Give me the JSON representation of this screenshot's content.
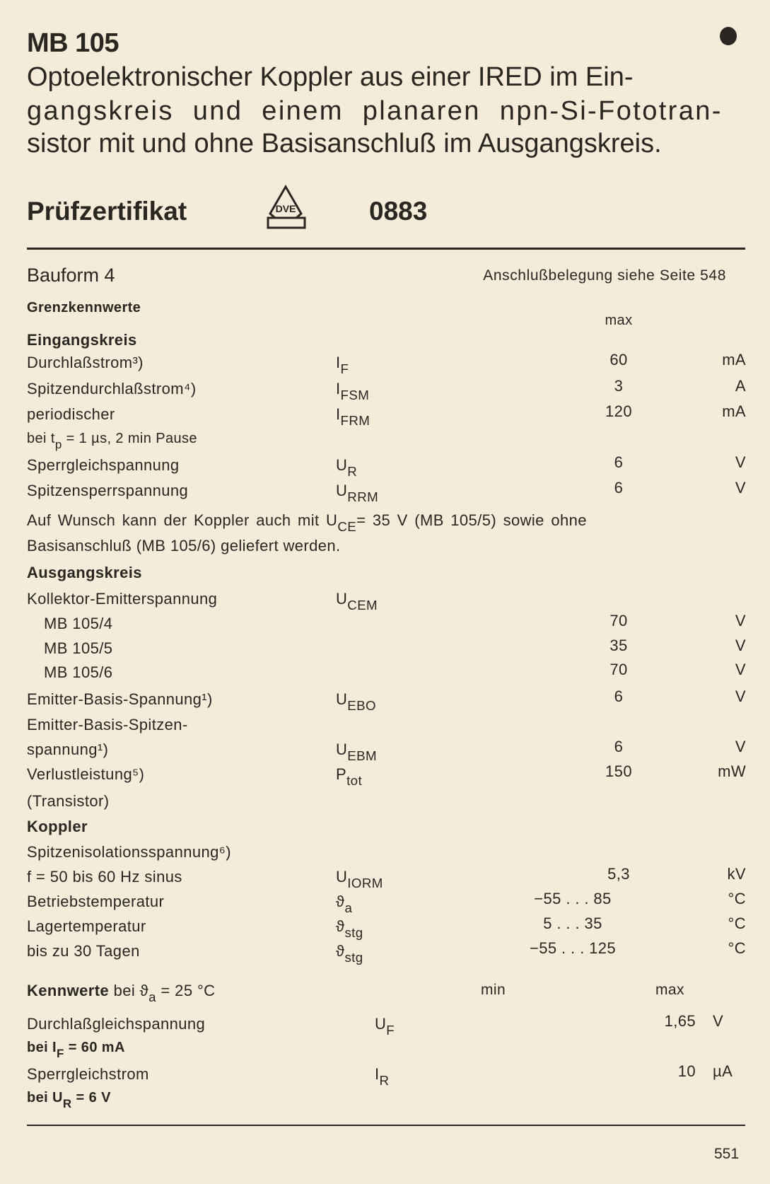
{
  "header": {
    "title": "MB 105",
    "description_lines": [
      "Optoelektronischer Koppler aus einer IRED im Ein-",
      "gangskreis und einem planaren npn-Si-Fototran-",
      "sistor mit und ohne Basisanschluß im Ausgangskreis."
    ],
    "certificate_label": "Prüfzertifikat",
    "certificate_logo_text": "DVE",
    "certificate_number": "0883"
  },
  "package": {
    "bauform": "Bauform 4",
    "pinout_note": "Anschlußbelegung siehe Seite 548"
  },
  "limits": {
    "heading": "Grenzkennwerte",
    "max_label": "max",
    "rows": [
      {
        "label": "Eingangskreis",
        "bold": true
      },
      {
        "label": "Durchlaßstrom³)",
        "symbol": "I_{F}",
        "value": "60",
        "unit": "mA"
      },
      {
        "label": "Spitzendurchlaßstrom⁴)",
        "symbol": "I_{FSM}",
        "value": "3",
        "unit": "A"
      },
      {
        "label": "periodischer",
        "symbol": "I_{FRM}",
        "value": "120",
        "unit": "mA"
      },
      {
        "label": "bei t_{p} = 1 µs, 2 min Pause",
        "small": true
      },
      {
        "label": "Sperrgleichspannung",
        "symbol": "U_{R}",
        "value": "6",
        "unit": "V"
      },
      {
        "label": "Spitzensperrspannung",
        "symbol": "U_{RRM}",
        "value": "6",
        "unit": "V"
      },
      {
        "label": "Auf Wunsch kann der Koppler auch mit U_{CE}= 35 V (MB 105/5) sowie ohne",
        "wide": true
      },
      {
        "label": "Basisanschluß (MB 105/6) geliefert werden."
      },
      {
        "label": "Ausgangskreis",
        "bold": true
      },
      {
        "label": "Kollektor-Emitterspannung",
        "symbol": "U_{CEM}"
      },
      {
        "label": "MB 105/4",
        "indent": true,
        "value": "70",
        "unit": "V"
      },
      {
        "label": "MB 105/5",
        "indent": true,
        "value": "35",
        "unit": "V"
      },
      {
        "label": "MB 105/6",
        "indent": true,
        "value": "70",
        "unit": "V"
      },
      {
        "label": "Emitter-Basis-Spannung¹)",
        "symbol": "U_{EBO}",
        "value": "6",
        "unit": "V"
      },
      {
        "label": "Emitter-Basis-Spitzen-"
      },
      {
        "label": "spannung¹)",
        "symbol": "U_{EBM}",
        "value": "6",
        "unit": "V"
      },
      {
        "label": "Verlustleistung⁵)",
        "symbol": "P_{tot}",
        "value": "150",
        "unit": "mW"
      },
      {
        "label": "(Transistor)"
      },
      {
        "label": "Koppler",
        "bold": true
      },
      {
        "label": "Spitzenisolationsspannung⁶)"
      },
      {
        "label": "f = 50 bis 60 Hz sinus",
        "symbol": "U_{IORM}",
        "value": "5,3",
        "unit": "kV"
      },
      {
        "label": "Betriebstemperatur",
        "symbol": "ϑ_{a}",
        "value": "−55 . . . 85",
        "unit": "°C",
        "range": true
      },
      {
        "label": "Lagertemperatur",
        "symbol": "ϑ_{stg}",
        "value": "5 . . . 35",
        "unit": "°C",
        "range": true
      },
      {
        "label": "bis zu 30 Tagen",
        "symbol": "ϑ_{stg}",
        "value": "−55 . . . 125",
        "unit": "°C",
        "range": true
      }
    ]
  },
  "characteristics": {
    "heading_bold": "Kennwerte",
    "heading_rest": "bei ϑ_{a} = 25 °C",
    "min_label": "min",
    "max_label": "max",
    "rows": [
      {
        "label": "Durchlaßgleichspannung",
        "symbol": "U_{F}",
        "max": "1,65",
        "unit": "V"
      },
      {
        "label": "bei I_{F} = 60 mA",
        "small": true
      },
      {
        "label": "Sperrgleichstrom",
        "symbol": "I_{R}",
        "max": "10",
        "unit": "µA"
      },
      {
        "label": "bei U_{R} = 6 V",
        "small": true
      }
    ]
  },
  "footer": {
    "page_number": "551"
  }
}
